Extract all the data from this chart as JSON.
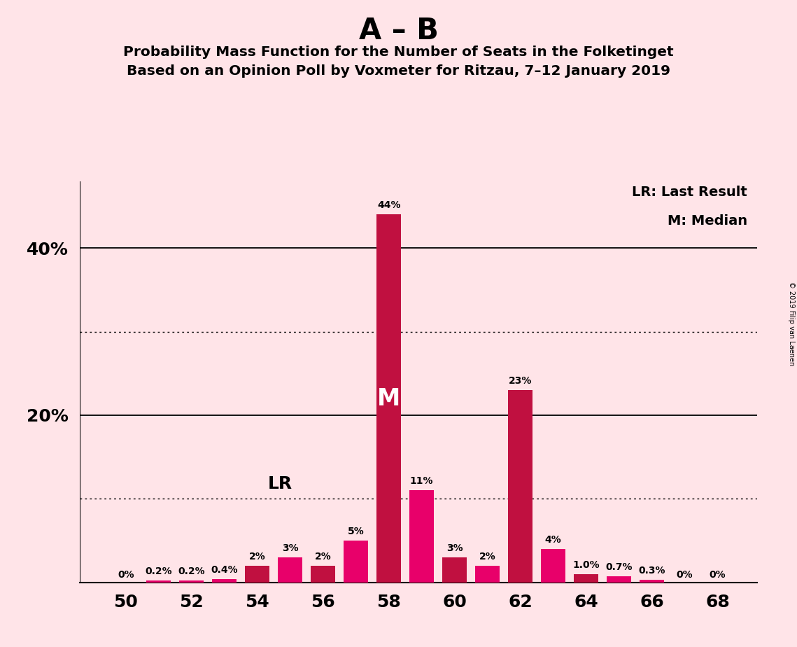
{
  "title_main": "A – B",
  "subtitle1": "Probability Mass Function for the Number of Seats in the Folketinget",
  "subtitle2": "Based on an Opinion Poll by Voxmeter for Ritzau, 7–12 January 2019",
  "copyright": "© 2019 Filip van Laenen",
  "legend_lr": "LR: Last Result",
  "legend_m": "M: Median",
  "seats": [
    50,
    51,
    52,
    53,
    54,
    55,
    56,
    57,
    58,
    59,
    60,
    61,
    62,
    63,
    64,
    65,
    66,
    67,
    68
  ],
  "values": [
    0.0,
    0.2,
    0.2,
    0.4,
    2.0,
    3.0,
    2.0,
    5.0,
    44.0,
    11.0,
    3.0,
    2.0,
    23.0,
    4.0,
    1.0,
    0.7,
    0.3,
    0.0,
    0.0
  ],
  "labels": [
    "0%",
    "0.2%",
    "0.2%",
    "0.4%",
    "2%",
    "3%",
    "2%",
    "5%",
    "44%",
    "11%",
    "3%",
    "2%",
    "23%",
    "4%",
    "1.0%",
    "0.7%",
    "0.3%",
    "0%",
    "0%"
  ],
  "bar_colors": [
    "#E8006A",
    "#E8006A",
    "#E8006A",
    "#E8006A",
    "#C01040",
    "#E8006A",
    "#C01040",
    "#E8006A",
    "#C01040",
    "#E8006A",
    "#C01040",
    "#E8006A",
    "#C01040",
    "#E8006A",
    "#C01040",
    "#E8006A",
    "#E8006A",
    "#E8006A",
    "#E8006A"
  ],
  "lr_seat": 55,
  "median_seat": 58,
  "background_color": "#FFE4E8",
  "bar_width": 0.75,
  "ylim_max": 48,
  "dotted_lines": [
    10.0,
    30.0
  ],
  "solid_lines": [
    20.0,
    40.0
  ],
  "color_crimson": "#C01040",
  "color_magenta": "#E8006A"
}
